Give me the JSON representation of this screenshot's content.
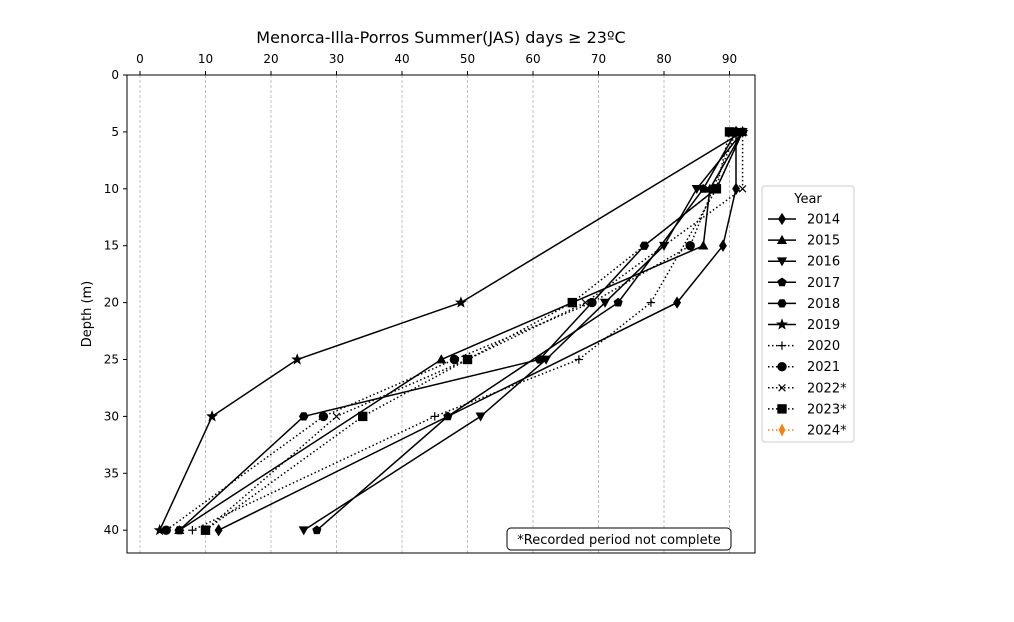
{
  "chart_data": {
    "type": "line",
    "title": "Menorca-Illa-Porros Summer(JAS) days ≥ 23ºC",
    "xlabel": "",
    "ylabel": "Depth (m)",
    "xlim": [
      -2,
      94
    ],
    "ylim": [
      42,
      0
    ],
    "x_axis_position": "top",
    "y_inverted": true,
    "xticks": [
      0,
      10,
      20,
      30,
      40,
      50,
      60,
      70,
      80,
      90
    ],
    "yticks": [
      0,
      5,
      10,
      15,
      20,
      25,
      30,
      35,
      40
    ],
    "grid": "vertical dashed",
    "legend": {
      "title": "Year",
      "placement": "outside right"
    },
    "annotation": "*Recorded period not complete",
    "series": [
      {
        "name": "2014",
        "marker": "diamond",
        "linestyle": "solid",
        "color": "#000000",
        "points": [
          [
            91,
            5
          ],
          [
            91,
            10
          ],
          [
            89,
            15
          ],
          [
            82,
            20
          ],
          [
            12,
            40
          ]
        ]
      },
      {
        "name": "2015",
        "marker": "triangle-up",
        "linestyle": "solid",
        "color": "#000000",
        "points": [
          [
            92,
            5
          ],
          [
            87,
            10
          ],
          [
            86,
            15
          ],
          [
            46,
            25
          ],
          [
            6,
            40
          ]
        ]
      },
      {
        "name": "2016",
        "marker": "triangle-down",
        "linestyle": "solid",
        "color": "#000000",
        "points": [
          [
            92,
            5
          ],
          [
            85,
            10
          ],
          [
            80,
            15
          ],
          [
            71,
            20
          ],
          [
            62,
            25
          ],
          [
            52,
            30
          ],
          [
            25,
            40
          ]
        ]
      },
      {
        "name": "2017",
        "marker": "pentagon",
        "linestyle": "solid",
        "color": "#000000",
        "points": [
          [
            91,
            5
          ],
          [
            86,
            10
          ],
          [
            73,
            20
          ],
          [
            47,
            30
          ],
          [
            27,
            40
          ]
        ]
      },
      {
        "name": "2018",
        "marker": "hexagon",
        "linestyle": "solid",
        "color": "#000000",
        "points": [
          [
            92,
            5
          ],
          [
            88,
            10
          ],
          [
            77,
            15
          ],
          [
            61,
            25
          ],
          [
            25,
            30
          ],
          [
            6,
            40
          ]
        ]
      },
      {
        "name": "2019",
        "marker": "star",
        "linestyle": "solid",
        "color": "#000000",
        "points": [
          [
            92,
            5
          ],
          [
            49,
            20
          ],
          [
            24,
            25
          ],
          [
            11,
            30
          ],
          [
            3,
            40
          ]
        ]
      },
      {
        "name": "2020",
        "marker": "plus",
        "linestyle": "dotted",
        "color": "#000000",
        "points": [
          [
            92,
            5
          ],
          [
            88,
            10
          ],
          [
            78,
            20
          ],
          [
            67,
            25
          ],
          [
            45,
            30
          ],
          [
            8,
            40
          ]
        ]
      },
      {
        "name": "2021",
        "marker": "circle",
        "linestyle": "dotted",
        "color": "#000000",
        "points": [
          [
            91,
            5
          ],
          [
            84,
            15
          ],
          [
            69,
            20
          ],
          [
            48,
            25
          ],
          [
            28,
            30
          ],
          [
            4,
            40
          ]
        ]
      },
      {
        "name": "2022*",
        "marker": "x",
        "linestyle": "dotted",
        "color": "#000000",
        "points": [
          [
            92,
            5
          ],
          [
            92,
            10
          ],
          [
            68,
            20
          ],
          [
            50,
            25
          ],
          [
            30,
            30
          ],
          [
            10,
            40
          ]
        ]
      },
      {
        "name": "2023*",
        "marker": "square",
        "linestyle": "dotted",
        "color": "#000000",
        "points": [
          [
            90,
            5
          ],
          [
            88,
            10
          ],
          [
            66,
            20
          ],
          [
            50,
            25
          ],
          [
            34,
            30
          ],
          [
            10,
            40
          ]
        ]
      },
      {
        "name": "2024*",
        "marker": "thin-diamond",
        "linestyle": "dotted",
        "color": "#ff7f0e",
        "points": []
      }
    ]
  }
}
